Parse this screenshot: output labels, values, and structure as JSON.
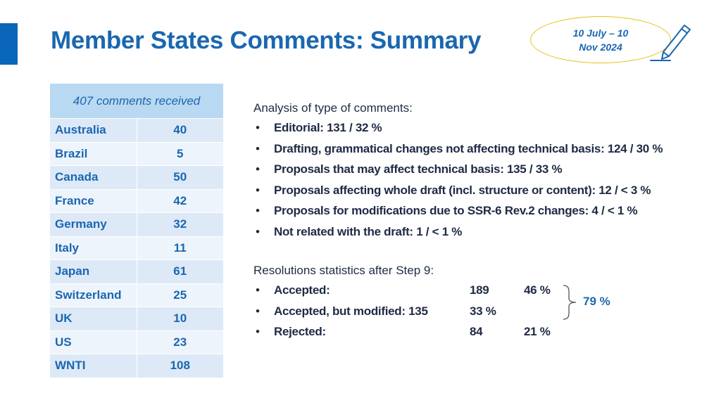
{
  "header": {
    "title": "Member States Comments: Summary",
    "date_line1": "10 July – 10",
    "date_line2": "Nov 2024"
  },
  "colors": {
    "accent": "#0a66b8",
    "title": "#1a67b0",
    "oval": "#e8c21a"
  },
  "comments_table": {
    "header": "407 comments received",
    "rows": [
      {
        "country": "Australia",
        "count": "40"
      },
      {
        "country": "Brazil",
        "count": "5"
      },
      {
        "country": "Canada",
        "count": "50"
      },
      {
        "country": "France",
        "count": "42"
      },
      {
        "country": "Germany",
        "count": "32"
      },
      {
        "country": "Italy",
        "count": "11"
      },
      {
        "country": "Japan",
        "count": "61"
      },
      {
        "country": "Switzerland",
        "count": "25"
      },
      {
        "country": "UK",
        "count": "10"
      },
      {
        "country": "US",
        "count": "23"
      },
      {
        "country": "WNTI",
        "count": "108"
      }
    ]
  },
  "analysis": {
    "heading": "Analysis of type of comments:",
    "bullet_symbol": "•",
    "items": [
      "Editorial: 131 / 32 %",
      "Drafting, grammatical changes not affecting technical basis: 124 / 30 %",
      "Proposals that may affect technical basis: 135 / 33 %",
      "Proposals affecting whole draft (incl. structure or content): 12 / < 3 %",
      "Proposals for modifications due to SSR-6 Rev.2 changes: 4 / < 1 %",
      "Not related with the draft: 1 / < 1 %"
    ]
  },
  "resolutions": {
    "heading": "Resolutions statistics after Step 9:",
    "items": [
      {
        "label": "Accepted:",
        "count": "189",
        "percent": "46 %"
      },
      {
        "label": "Accepted, but modified: 135",
        "count": "33 %",
        "percent": ""
      },
      {
        "label": "Rejected:",
        "count": "84",
        "percent": "21 %"
      }
    ],
    "combined_percent": "79 %"
  }
}
